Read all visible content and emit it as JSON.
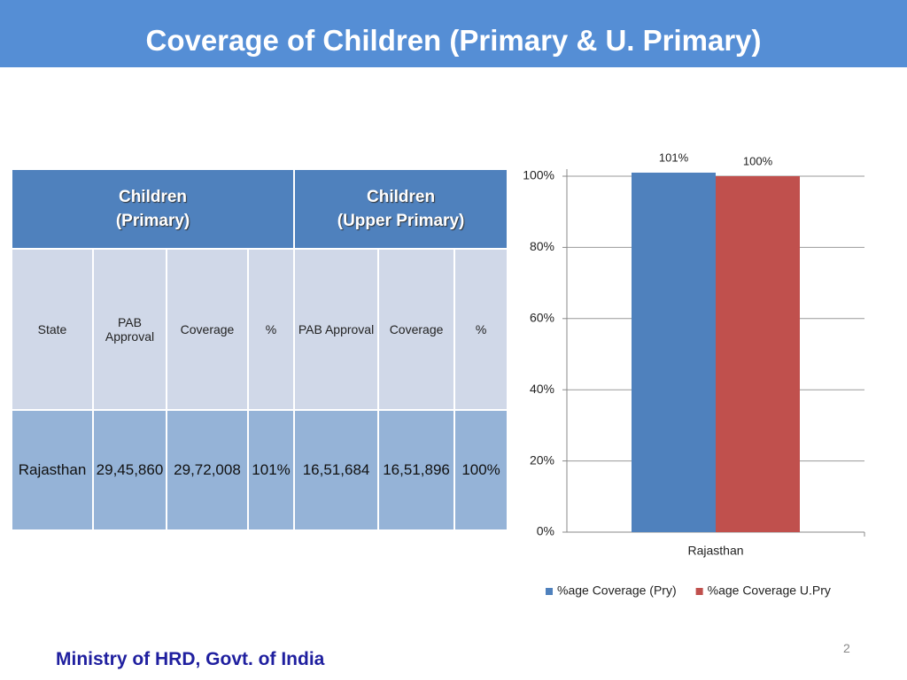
{
  "header": {
    "title": "Coverage of Children (Primary & U. Primary)"
  },
  "table": {
    "groups": [
      [
        "Children",
        "(Primary)"
      ],
      [
        "Children",
        "(Upper Primary)"
      ]
    ],
    "columns": [
      "State",
      "PAB Approval",
      "Coverage",
      "%",
      "PAB Approval",
      "Coverage",
      "%"
    ],
    "rows": [
      [
        "Rajasthan",
        "29,45,860",
        "29,72,008",
        "101%",
        "16,51,684",
        "16,51,896",
        "100%"
      ]
    ]
  },
  "chart_data": {
    "type": "bar",
    "categories": [
      "Rajasthan"
    ],
    "series": [
      {
        "name": "%age Coverage (Pry)",
        "color": "#4f81bd",
        "values": [
          101
        ],
        "value_labels": [
          "101%"
        ]
      },
      {
        "name": "%age Coverage U.Pry",
        "color": "#c0504d",
        "values": [
          100
        ],
        "value_labels": [
          "100%"
        ]
      }
    ],
    "ylim": [
      0,
      100
    ],
    "yticks": [
      {
        "value": 0,
        "label": "0%"
      },
      {
        "value": 20,
        "label": "20%"
      },
      {
        "value": 40,
        "label": "40%"
      },
      {
        "value": 60,
        "label": "60%"
      },
      {
        "value": 80,
        "label": "80%"
      },
      {
        "value": 100,
        "label": "100%"
      }
    ],
    "grid": true,
    "legend": "bottom"
  },
  "footer": {
    "organization": "Ministry of HRD, Govt. of India",
    "page": "2"
  }
}
